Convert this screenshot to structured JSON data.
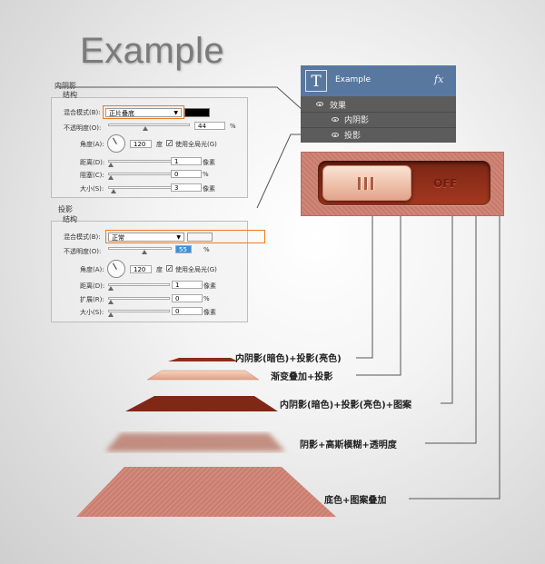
{
  "title": "Example",
  "inner_shadow": {
    "section": "内阴影",
    "group": "结构",
    "blend_label": "混合模式(B):",
    "blend_value": "正片叠底",
    "opacity_label": "不透明度(O):",
    "opacity_value": "44",
    "angle_label": "角度(A):",
    "angle_value": "120",
    "angle_unit": "度",
    "global_light": "使用全局光(G)",
    "distance_label": "距离(D):",
    "distance_value": "1",
    "choke_label": "阻塞(C):",
    "choke_value": "0",
    "size_label": "大小(S):",
    "size_value": "3",
    "px": "像素",
    "pct": "%",
    "color": "#000000"
  },
  "drop_shadow": {
    "section": "投影",
    "group": "结构",
    "blend_label": "混合模式(B):",
    "blend_value": "正常",
    "opacity_label": "不透明度(O):",
    "opacity_value": "55",
    "angle_label": "角度(A):",
    "angle_value": "120",
    "angle_unit": "度",
    "global_light": "使用全局光(G)",
    "distance_label": "距离(D):",
    "distance_value": "1",
    "spread_label": "扩展(R):",
    "spread_value": "0",
    "size_label": "大小(S):",
    "size_value": "0",
    "px": "像素",
    "pct": "%",
    "color": "#f5f5f5"
  },
  "layers": {
    "thumb": "T",
    "name": "Example",
    "fx": "fx",
    "effects": "效果",
    "inner_shadow": "内阴影",
    "drop_shadow": "投影"
  },
  "toggle": {
    "off": "OFF"
  },
  "stack": [
    {
      "caption": "内阴影(暗色)+投影(亮色)"
    },
    {
      "caption": "渐变叠加+投影"
    },
    {
      "caption": "内阴影(暗色)+投影(亮色)+图案"
    },
    {
      "caption": "阴影+高斯模糊+透明度"
    },
    {
      "caption": "底色+图案叠加"
    }
  ],
  "colors": {
    "accent": "#f07a22",
    "layer_bar": "#5878a0",
    "brick": "#c77a6b"
  }
}
